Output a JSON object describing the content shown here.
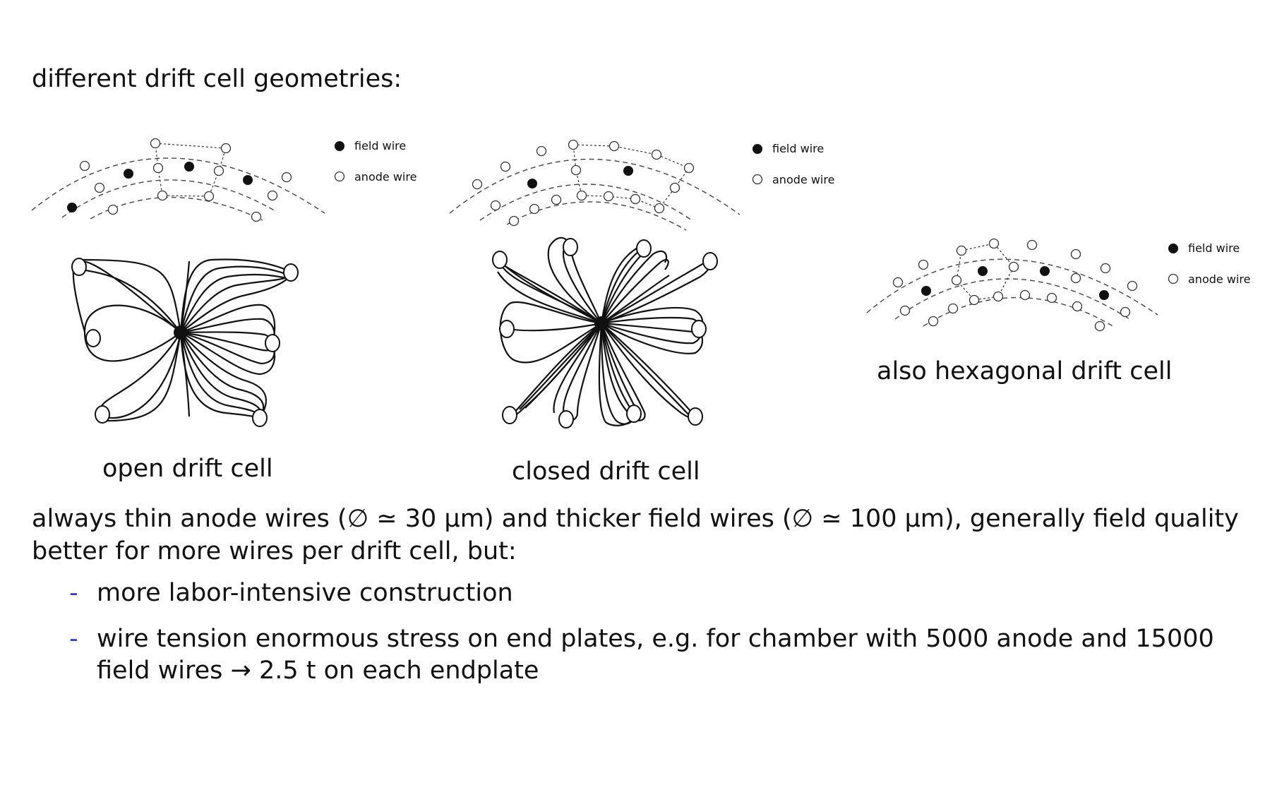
{
  "heading": "different drift cell geometries:",
  "legend": {
    "field": "field wire",
    "anode": "anode wire"
  },
  "captions": {
    "open": "open drift cell",
    "closed": "closed drift cell",
    "hex": "also hexagonal drift cell"
  },
  "paragraph": "always thin anode wires (∅ ≃ 30 μm) and thicker field wires (∅ ≃ 100 μm), generally field quality better for more wires per drift cell, but:",
  "bullets": [
    {
      "dash": "-",
      "text": "more labor-intensive construction"
    },
    {
      "dash": "-",
      "text": "wire tension enormous stress on end plates, e.g. for chamber with 5000 anode and 15000 field wires → 2.5 t on each endplate"
    }
  ]
}
